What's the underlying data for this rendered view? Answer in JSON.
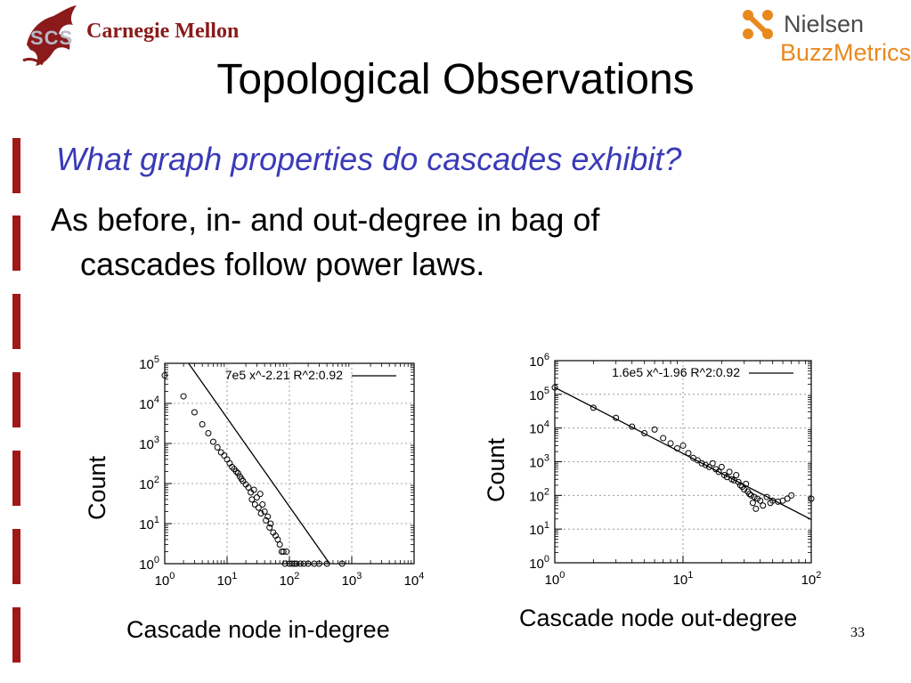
{
  "header": {
    "cmu_logo_text": "Carnegie Mellon",
    "scs_mark": "SCS",
    "nielsen_text": "Nielsen",
    "buzzmetrics_text": "BuzzMetrics"
  },
  "slide": {
    "title": "Topological Observations",
    "subtitle": "What graph properties do cascades exhibit?",
    "bullet_line1": "As before, in- and out-degree in bag of",
    "bullet_line2": "cascades follow power laws.",
    "page_number": "33"
  },
  "colors": {
    "title_text": "#000000",
    "subtitle_text": "#3a3ab8",
    "accent_bar": "#a01818",
    "cmu_red": "#8b1a1a",
    "buzz_orange": "#e8891e"
  },
  "chart_data": [
    {
      "type": "scatter",
      "xlabel": "Cascade node in-degree",
      "ylabel": "Count",
      "x_scale": "log",
      "y_scale": "log",
      "xlim": [
        1,
        10000
      ],
      "ylim": [
        1,
        100000
      ],
      "x_ticks": [
        "10^0",
        "10^1",
        "10^2",
        "10^3",
        "10^4"
      ],
      "y_ticks": [
        "10^0",
        "10^1",
        "10^2",
        "10^3",
        "10^4",
        "10^5"
      ],
      "grid": true,
      "fit": {
        "label": "7e5 x^-2.21 R^2:0.92",
        "coef": 700000,
        "exponent": -2.21,
        "r2": 0.92
      },
      "points": [
        [
          1,
          50000
        ],
        [
          2,
          15000
        ],
        [
          3,
          6000
        ],
        [
          4,
          3000
        ],
        [
          5,
          1800
        ],
        [
          6,
          1100
        ],
        [
          7,
          800
        ],
        [
          8,
          600
        ],
        [
          9,
          500
        ],
        [
          10,
          400
        ],
        [
          11,
          320
        ],
        [
          12,
          260
        ],
        [
          13,
          230
        ],
        [
          14,
          200
        ],
        [
          15,
          180
        ],
        [
          16,
          150
        ],
        [
          17,
          130
        ],
        [
          18,
          115
        ],
        [
          20,
          95
        ],
        [
          22,
          80
        ],
        [
          24,
          60
        ],
        [
          25,
          40
        ],
        [
          27,
          70
        ],
        [
          28,
          30
        ],
        [
          30,
          45
        ],
        [
          32,
          25
        ],
        [
          34,
          55
        ],
        [
          35,
          18
        ],
        [
          37,
          30
        ],
        [
          40,
          20
        ],
        [
          42,
          12
        ],
        [
          45,
          15
        ],
        [
          48,
          8
        ],
        [
          50,
          10
        ],
        [
          55,
          6
        ],
        [
          60,
          5
        ],
        [
          65,
          4
        ],
        [
          70,
          3
        ],
        [
          75,
          2
        ],
        [
          80,
          2
        ],
        [
          85,
          1
        ],
        [
          90,
          2
        ],
        [
          100,
          1
        ],
        [
          110,
          1
        ],
        [
          120,
          1
        ],
        [
          130,
          1
        ],
        [
          150,
          1
        ],
        [
          170,
          1
        ],
        [
          200,
          1
        ],
        [
          250,
          1
        ],
        [
          300,
          1
        ],
        [
          400,
          1
        ],
        [
          700,
          1
        ]
      ]
    },
    {
      "type": "scatter",
      "xlabel": "Cascade node out-degree",
      "ylabel": "Count",
      "x_scale": "log",
      "y_scale": "log",
      "xlim": [
        1,
        100
      ],
      "ylim": [
        1,
        1000000
      ],
      "x_ticks": [
        "10^0",
        "10^1",
        "10^2"
      ],
      "y_ticks": [
        "10^0",
        "10^1",
        "10^2",
        "10^3",
        "10^4",
        "10^5",
        "10^6"
      ],
      "grid": true,
      "fit": {
        "label": "1.6e5 x^-1.96 R^2:0.92",
        "coef": 160000,
        "exponent": -1.96,
        "r2": 0.92
      },
      "points": [
        [
          1,
          160000
        ],
        [
          2,
          40000
        ],
        [
          3,
          20000
        ],
        [
          4,
          11000
        ],
        [
          5,
          7000
        ],
        [
          6,
          9000
        ],
        [
          7,
          5000
        ],
        [
          8,
          3500
        ],
        [
          9,
          2500
        ],
        [
          10,
          3000
        ],
        [
          11,
          1800
        ],
        [
          12,
          1300
        ],
        [
          13,
          1100
        ],
        [
          14,
          900
        ],
        [
          15,
          800
        ],
        [
          16,
          700
        ],
        [
          17,
          900
        ],
        [
          18,
          600
        ],
        [
          19,
          500
        ],
        [
          20,
          700
        ],
        [
          21,
          400
        ],
        [
          22,
          350
        ],
        [
          23,
          500
        ],
        [
          24,
          300
        ],
        [
          25,
          280
        ],
        [
          26,
          400
        ],
        [
          27,
          250
        ],
        [
          28,
          200
        ],
        [
          29,
          180
        ],
        [
          30,
          150
        ],
        [
          31,
          220
        ],
        [
          32,
          130
        ],
        [
          33,
          110
        ],
        [
          34,
          100
        ],
        [
          35,
          60
        ],
        [
          36,
          90
        ],
        [
          37,
          40
        ],
        [
          38,
          80
        ],
        [
          40,
          70
        ],
        [
          42,
          50
        ],
        [
          45,
          90
        ],
        [
          48,
          60
        ],
        [
          50,
          70
        ],
        [
          55,
          65
        ],
        [
          60,
          70
        ],
        [
          65,
          80
        ],
        [
          70,
          100
        ],
        [
          100,
          80
        ]
      ]
    }
  ]
}
